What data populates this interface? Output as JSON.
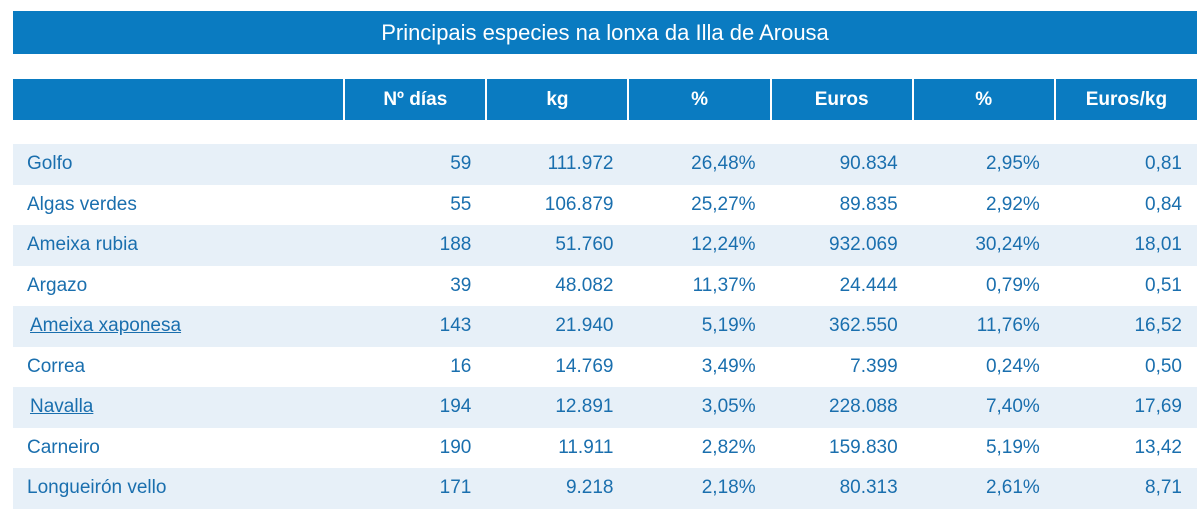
{
  "title": "Principais especies na lonxa da Illa de Arousa",
  "colors": {
    "header_bg": "#0a7bc1",
    "stripe": "#e7f0f8",
    "text": "#1a6fae"
  },
  "columns": [
    "",
    "Nº días",
    "kg",
    "%",
    "Euros",
    "%",
    "Euros/kg"
  ],
  "rows": [
    {
      "name": "Golfo",
      "link": false,
      "cells": [
        "59",
        "111.972",
        "26,48%",
        "90.834",
        "2,95%",
        "0,81"
      ]
    },
    {
      "name": "Algas verdes",
      "link": false,
      "cells": [
        "55",
        "106.879",
        "25,27%",
        "89.835",
        "2,92%",
        "0,84"
      ]
    },
    {
      "name": "Ameixa rubia",
      "link": false,
      "cells": [
        "188",
        "51.760",
        "12,24%",
        "932.069",
        "30,24%",
        "18,01"
      ]
    },
    {
      "name": "Argazo",
      "link": false,
      "cells": [
        "39",
        "48.082",
        "11,37%",
        "24.444",
        "0,79%",
        "0,51"
      ]
    },
    {
      "name": "Ameixa xaponesa",
      "link": true,
      "cells": [
        "143",
        "21.940",
        "5,19%",
        "362.550",
        "11,76%",
        "16,52"
      ]
    },
    {
      "name": "Correa",
      "link": false,
      "cells": [
        "16",
        "14.769",
        "3,49%",
        "7.399",
        "0,24%",
        "0,50"
      ]
    },
    {
      "name": "Navalla",
      "link": true,
      "cells": [
        "194",
        "12.891",
        "3,05%",
        "228.088",
        "7,40%",
        "17,69"
      ]
    },
    {
      "name": "Carneiro",
      "link": false,
      "cells": [
        "190",
        "11.911",
        "2,82%",
        "159.830",
        "5,19%",
        "13,42"
      ]
    },
    {
      "name": "Longueirón vello",
      "link": false,
      "cells": [
        "171",
        "9.218",
        "2,18%",
        "80.313",
        "2,61%",
        "8,71"
      ]
    }
  ]
}
